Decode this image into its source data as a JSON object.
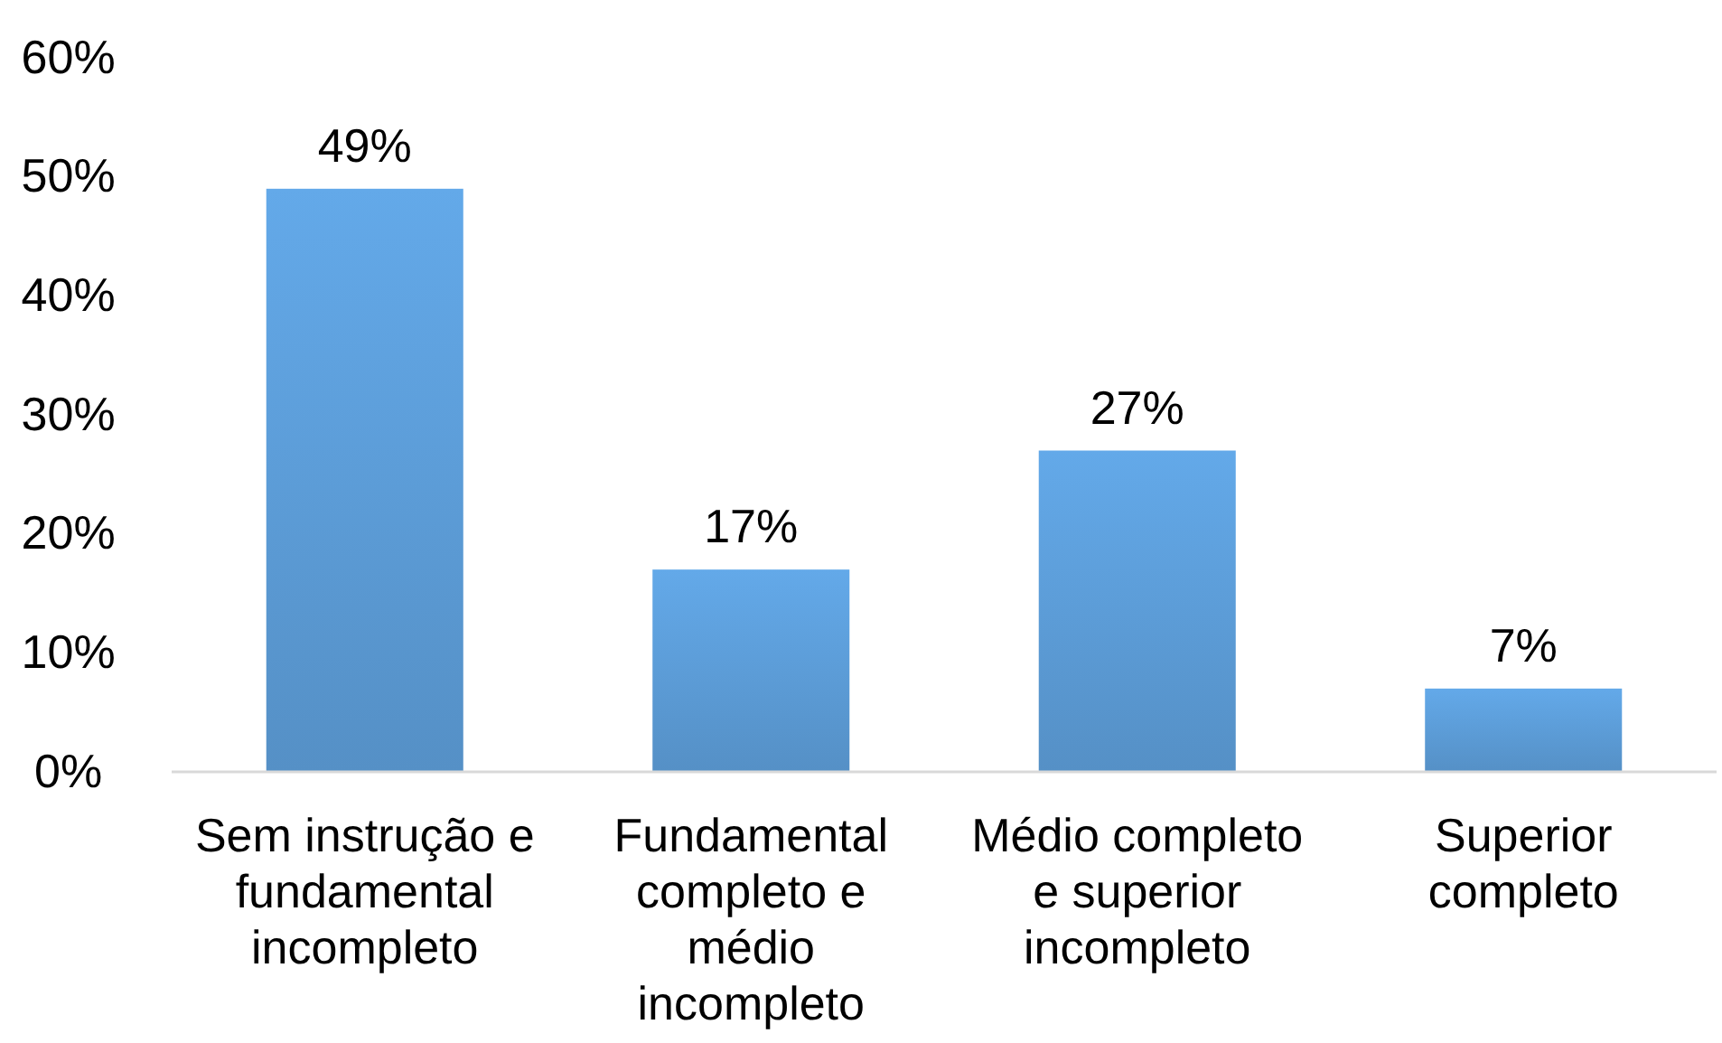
{
  "chart_data": {
    "type": "bar",
    "categories": [
      "Sem instrução e fundamental incompleto",
      "Fundamental completo e médio incompleto",
      "Médio completo e superior incompleto",
      "Superior completo"
    ],
    "values": [
      49,
      17,
      27,
      7
    ],
    "value_labels": [
      "49%",
      "17%",
      "27%",
      "7%"
    ],
    "color": "#5b9bd5",
    "ylim": [
      0,
      60
    ],
    "yticks": [
      {
        "value": 0,
        "label": "0%"
      },
      {
        "value": 10,
        "label": "10%"
      },
      {
        "value": 20,
        "label": "20%"
      },
      {
        "value": 30,
        "label": "30%"
      },
      {
        "value": 40,
        "label": "40%"
      },
      {
        "value": 50,
        "label": "50%"
      },
      {
        "value": 60,
        "label": "60%"
      }
    ],
    "grid": false
  }
}
